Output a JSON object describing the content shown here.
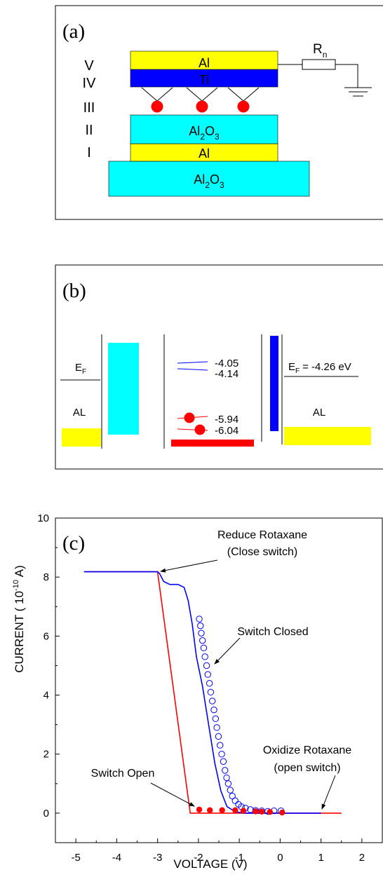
{
  "panel_a": {
    "label": "(a)",
    "layer_roman": [
      "V",
      "IV",
      "III",
      "II",
      "I"
    ],
    "layers": {
      "al_top": "Al",
      "ti": "Ti",
      "al2o3_mid_base": "Al",
      "al2o3_mid_sub1": "2",
      "al2o3_mid_rest": "O",
      "al2o3_mid_sub2": "3",
      "al_bottom": "Al",
      "al2o3_bot_base": "Al",
      "al2o3_bot_sub1": "2",
      "al2o3_bot_rest": "O",
      "al2o3_bot_sub2": "3"
    },
    "resistor": {
      "base": "R",
      "sub": "n"
    },
    "colors": {
      "aluminum": "#ffff00",
      "titanium": "#0000ff",
      "oxide": "#00ffff",
      "molecule": "#ff0000"
    }
  },
  "panel_b": {
    "label": "(b)",
    "ef_left_base": "E",
    "ef_left_sub": "F",
    "ef_right_base": "E",
    "ef_right_sub": "F",
    "ef_right_value": "= -4.26 eV",
    "al_left": "AL",
    "al_right": "AL",
    "levels": [
      "-4.05",
      "-4.14",
      "-5.94",
      "-6.04"
    ]
  },
  "chart_data": {
    "type": "line",
    "label": "(c)",
    "xlabel": "VOLTAGE (V)",
    "ylabel_prefix": "CURRENT ( 10",
    "ylabel_exp": "-10",
    "ylabel_suffix": " A)",
    "xlim": [
      -5.5,
      2.5
    ],
    "ylim": [
      -1,
      10
    ],
    "x_ticks": [
      -5,
      -4,
      -3,
      -2,
      -1,
      0,
      1,
      2
    ],
    "x_tick_labels": [
      "-5",
      "-4",
      "-3",
      "-2",
      "-1",
      "0",
      "1",
      "2"
    ],
    "y_ticks": [
      0,
      2,
      4,
      6,
      8,
      10
    ],
    "y_tick_labels": [
      "0",
      "2",
      "4",
      "6",
      "8",
      "10"
    ],
    "series": [
      {
        "color": "#ff0000",
        "style": "line",
        "points": [
          [
            -4.8,
            8.18
          ],
          [
            -3.0,
            8.18
          ],
          [
            -2.2,
            0.0
          ],
          [
            1.5,
            0.0
          ]
        ]
      },
      {
        "color": "#0000ff",
        "style": "line",
        "points": [
          [
            -4.8,
            8.18
          ],
          [
            -3.0,
            8.18
          ],
          [
            -2.95,
            8.12
          ],
          [
            -2.85,
            7.85
          ],
          [
            -2.7,
            7.75
          ],
          [
            -2.5,
            7.75
          ],
          [
            -2.35,
            7.65
          ],
          [
            -2.25,
            7.2
          ],
          [
            -2.15,
            6.4
          ],
          [
            -2.05,
            5.3
          ],
          [
            -1.9,
            4.3
          ],
          [
            -1.75,
            3.0
          ],
          [
            -1.6,
            1.7
          ],
          [
            -1.45,
            0.75
          ],
          [
            -1.3,
            0.22
          ],
          [
            -1.1,
            0.05
          ],
          [
            -0.9,
            0.0
          ],
          [
            1.0,
            0.0
          ]
        ]
      },
      {
        "color": "#0000ff",
        "style": "open-circles",
        "points": [
          [
            -1.98,
            6.58
          ],
          [
            -1.95,
            6.35
          ],
          [
            -1.93,
            6.1
          ],
          [
            -1.9,
            5.85
          ],
          [
            -1.87,
            5.6
          ],
          [
            -1.84,
            5.3
          ],
          [
            -1.8,
            5.0
          ],
          [
            -1.77,
            4.7
          ],
          [
            -1.73,
            4.4
          ],
          [
            -1.7,
            4.1
          ],
          [
            -1.66,
            3.8
          ],
          [
            -1.62,
            3.5
          ],
          [
            -1.58,
            3.2
          ],
          [
            -1.55,
            2.9
          ],
          [
            -1.51,
            2.6
          ],
          [
            -1.47,
            2.3
          ],
          [
            -1.43,
            2.0
          ],
          [
            -1.39,
            1.75
          ],
          [
            -1.35,
            1.45
          ],
          [
            -1.31,
            1.2
          ],
          [
            -1.27,
            1.0
          ],
          [
            -1.22,
            0.78
          ],
          [
            -1.17,
            0.58
          ],
          [
            -1.1,
            0.42
          ],
          [
            -1.02,
            0.3
          ],
          [
            -0.95,
            0.22
          ],
          [
            -0.85,
            0.17
          ],
          [
            -0.73,
            0.12
          ],
          [
            -0.6,
            0.09
          ],
          [
            -0.45,
            0.08
          ],
          [
            -0.3,
            0.06
          ],
          [
            -0.15,
            0.08
          ],
          [
            0.02,
            0.08
          ]
        ]
      },
      {
        "color": "#ff0000",
        "style": "filled-circles",
        "points": [
          [
            -1.98,
            0.12
          ],
          [
            -1.72,
            0.1
          ],
          [
            -1.42,
            0.1
          ],
          [
            -1.1,
            0.1
          ],
          [
            -0.9,
            0.08
          ],
          [
            -0.6,
            0.06
          ],
          [
            -0.45,
            0.05
          ],
          [
            -0.25,
            0.04
          ],
          [
            0.05,
            0.02
          ]
        ]
      }
    ],
    "annotations": {
      "reduce_line1": "Reduce Rotaxane",
      "reduce_line2": "(Close switch)",
      "closed": "Switch Closed",
      "oxidize_line1": "Oxidize Rotaxane",
      "oxidize_line2": "(open switch)",
      "open": "Switch Open"
    }
  }
}
